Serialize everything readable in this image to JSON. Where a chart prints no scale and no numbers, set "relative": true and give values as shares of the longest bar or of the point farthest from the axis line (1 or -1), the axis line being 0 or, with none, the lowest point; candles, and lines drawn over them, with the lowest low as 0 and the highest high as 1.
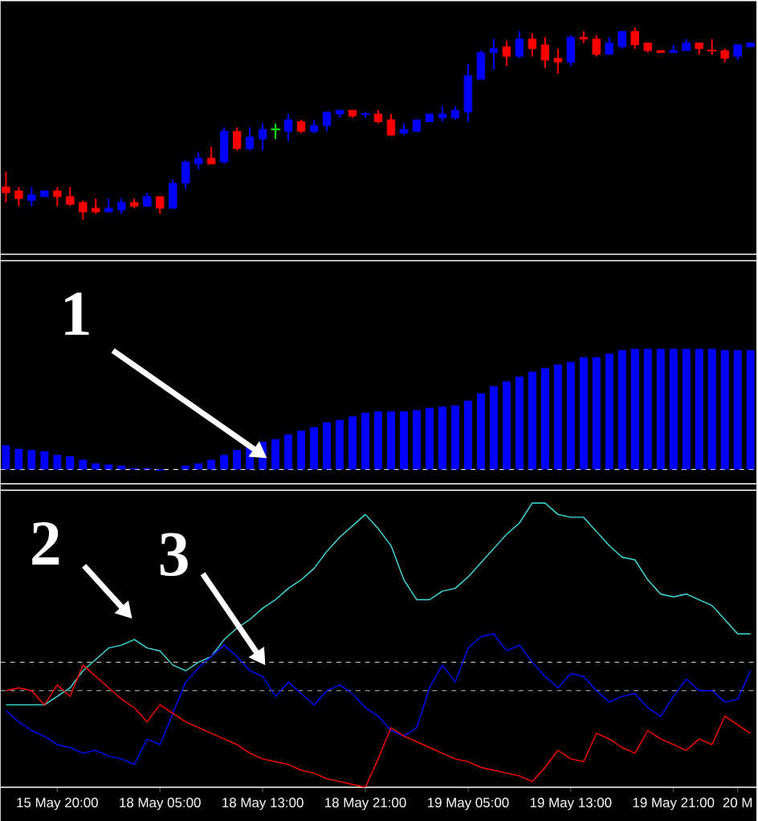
{
  "chart_data": [
    {
      "type": "candlestick",
      "relative": true,
      "categories": [
        null,
        null,
        null,
        null,
        null,
        null,
        null,
        null,
        null,
        null,
        null,
        null,
        null,
        null,
        null,
        null,
        null,
        null,
        null,
        null,
        null,
        null,
        null,
        null,
        null,
        null,
        null,
        null,
        null,
        null,
        null,
        null,
        null,
        null,
        null,
        null,
        null,
        null,
        null,
        null,
        null,
        null,
        null,
        null,
        null,
        null,
        null,
        null,
        null,
        null,
        null,
        null,
        null,
        null,
        null,
        null,
        null,
        null,
        null
      ],
      "ohlc": [
        [
          0.17,
          0.25,
          0.09,
          0.14
        ],
        [
          0.15,
          0.17,
          0.07,
          0.11
        ],
        [
          0.1,
          0.17,
          0.07,
          0.13
        ],
        [
          0.12,
          0.15,
          0.12,
          0.15
        ],
        [
          0.15,
          0.17,
          0.07,
          0.12
        ],
        [
          0.12,
          0.17,
          0.07,
          0.08
        ],
        [
          0.09,
          0.1,
          0,
          0.04
        ],
        [
          0.06,
          0.11,
          0.03,
          0.04
        ],
        [
          0.04,
          0.11,
          0.04,
          0.06
        ],
        [
          0.05,
          0.11,
          0.03,
          0.09
        ],
        [
          0.09,
          0.11,
          0.06,
          0.07
        ],
        [
          0.07,
          0.14,
          0.07,
          0.12
        ],
        [
          0.12,
          0.12,
          0.03,
          0.06
        ],
        [
          0.06,
          0.21,
          0.06,
          0.19
        ],
        [
          0.19,
          0.31,
          0.16,
          0.3
        ],
        [
          0.29,
          0.35,
          0.26,
          0.32
        ],
        [
          0.32,
          0.38,
          0.29,
          0.29
        ],
        [
          0.3,
          0.48,
          0.29,
          0.46
        ],
        [
          0.46,
          0.48,
          0.36,
          0.37
        ],
        [
          0.37,
          0.48,
          0.36,
          0.43
        ],
        [
          0.42,
          0.5,
          0.36,
          0.47
        ],
        [
          0.47,
          0.5,
          0.42,
          0.47
        ],
        [
          0.46,
          0.55,
          0.41,
          0.52
        ],
        [
          0.51,
          0.52,
          0.45,
          0.46
        ],
        [
          0.46,
          0.52,
          0.45,
          0.49
        ],
        [
          0.49,
          0.56,
          0.46,
          0.56
        ],
        [
          0.55,
          0.57,
          0.53,
          0.57
        ],
        [
          0.57,
          0.57,
          0.53,
          0.54
        ],
        [
          0.55,
          0.56,
          0.53,
          0.55
        ],
        [
          0.55,
          0.57,
          0.5,
          0.51
        ],
        [
          0.52,
          0.55,
          0.44,
          0.44
        ],
        [
          0.45,
          0.5,
          0.44,
          0.47
        ],
        [
          0.46,
          0.52,
          0.46,
          0.52
        ],
        [
          0.51,
          0.55,
          0.51,
          0.55
        ],
        [
          0.53,
          0.59,
          0.51,
          0.55
        ],
        [
          0.53,
          0.59,
          0.52,
          0.57
        ],
        [
          0.56,
          0.81,
          0.51,
          0.75
        ],
        [
          0.73,
          0.88,
          0.73,
          0.87
        ],
        [
          0.87,
          0.94,
          0.78,
          0.89
        ],
        [
          0.9,
          0.93,
          0.8,
          0.85
        ],
        [
          0.85,
          0.98,
          0.84,
          0.94
        ],
        [
          0.94,
          0.97,
          0.85,
          0.89
        ],
        [
          0.91,
          0.95,
          0.79,
          0.83
        ],
        [
          0.84,
          0.89,
          0.76,
          0.82
        ],
        [
          0.82,
          0.96,
          0.8,
          0.95
        ],
        [
          0.95,
          0.98,
          0.92,
          0.94
        ],
        [
          0.94,
          0.96,
          0.85,
          0.86
        ],
        [
          0.86,
          0.95,
          0.86,
          0.92
        ],
        [
          0.9,
          0.98,
          0.89,
          0.98
        ],
        [
          0.98,
          1,
          0.89,
          0.91
        ],
        [
          0.92,
          0.92,
          0.87,
          0.88
        ],
        [
          0.88,
          0.88,
          0.87,
          0.87
        ],
        [
          0.87,
          0.91,
          0.87,
          0.88
        ],
        [
          0.88,
          0.94,
          0.88,
          0.92
        ],
        [
          0.92,
          0.92,
          0.86,
          0.89
        ],
        [
          0.88,
          0.94,
          0.86,
          0.88
        ],
        [
          0.88,
          0.89,
          0.82,
          0.84
        ],
        [
          0.85,
          0.91,
          0.83,
          0.91
        ],
        [
          0.9,
          0.92,
          0.9,
          0.92
        ]
      ],
      "colors": [
        "#ff0000",
        "#ff0000",
        "#0000ff",
        "#0000ff",
        "#ff0000",
        "#ff0000",
        "#ff0000",
        "#ff0000",
        "#0000ff",
        "#0000ff",
        "#ff0000",
        "#0000ff",
        "#ff0000",
        "#0000ff",
        "#0000ff",
        "#0000ff",
        "#ff0000",
        "#0000ff",
        "#ff0000",
        "#0000ff",
        "#0000ff",
        "#00ff00",
        "#0000ff",
        "#ff0000",
        "#0000ff",
        "#0000ff",
        "#0000ff",
        "#ff0000",
        "#0000ff",
        "#ff0000",
        "#ff0000",
        "#0000ff",
        "#0000ff",
        "#0000ff",
        "#0000ff",
        "#0000ff",
        "#0000ff",
        "#0000ff",
        "#0000ff",
        "#ff0000",
        "#0000ff",
        "#ff0000",
        "#ff0000",
        "#ff0000",
        "#0000ff",
        "#ff0000",
        "#ff0000",
        "#0000ff",
        "#0000ff",
        "#ff0000",
        "#ff0000",
        "#ff0000",
        "#0000ff",
        "#0000ff",
        "#ff0000",
        "#ff0000",
        "#ff0000",
        "#0000ff",
        "#0000ff"
      ]
    },
    {
      "type": "bar",
      "relative": true,
      "color": "#0000ff",
      "annotations": [
        "1"
      ],
      "categories": [
        null,
        null,
        null,
        null,
        null,
        null,
        null,
        null,
        null,
        null,
        null,
        null,
        null,
        null,
        null,
        null,
        null,
        null,
        null,
        null,
        null,
        null,
        null,
        null,
        null,
        null,
        null,
        null,
        null,
        null,
        null,
        null,
        null,
        null,
        null,
        null,
        null,
        null,
        null,
        null,
        null,
        null,
        null,
        null,
        null,
        null,
        null,
        null,
        null,
        null,
        null,
        null,
        null,
        null,
        null,
        null,
        null,
        null,
        null
      ],
      "values": [
        0.2,
        0.17,
        0.16,
        0.15,
        0.12,
        0.11,
        0.08,
        0.05,
        0.04,
        0.03,
        0.01,
        0.01,
        -0.01,
        0,
        0.03,
        0.05,
        0.08,
        0.12,
        0.16,
        0.19,
        0.23,
        0.25,
        0.29,
        0.32,
        0.35,
        0.39,
        0.41,
        0.44,
        0.47,
        0.48,
        0.48,
        0.48,
        0.49,
        0.51,
        0.52,
        0.53,
        0.57,
        0.63,
        0.69,
        0.73,
        0.77,
        0.81,
        0.84,
        0.87,
        0.89,
        0.93,
        0.93,
        0.96,
        0.99,
        1,
        1,
        1,
        1,
        1,
        1,
        1,
        0.99,
        0.99,
        0.99
      ]
    },
    {
      "type": "line",
      "relative": true,
      "annotations": [
        "2",
        "3"
      ],
      "categories": [
        null,
        null,
        null,
        null,
        "15 May 20:00",
        null,
        null,
        null,
        null,
        null,
        null,
        null,
        "18 May 05:00",
        null,
        null,
        null,
        null,
        null,
        null,
        null,
        "18 May 13:00",
        null,
        null,
        null,
        null,
        null,
        null,
        null,
        "18 May 21:00",
        null,
        null,
        null,
        null,
        null,
        null,
        null,
        "19 May 05:00",
        null,
        null,
        null,
        null,
        null,
        null,
        null,
        "19 May 13:00",
        null,
        null,
        null,
        null,
        null,
        null,
        null,
        "19 May 21:00",
        null,
        null,
        null,
        null,
        "20 M",
        null
      ],
      "ref_lines": [
        {
          "axis": "y",
          "value": 0.44,
          "color": "#c0c0c0",
          "line_style": "dashed"
        },
        {
          "axis": "y",
          "value": 0.34,
          "color": "#c0c0c0",
          "line_style": "dashed"
        }
      ],
      "series": [
        {
          "color": "#40e0e0",
          "values": [
            0.29,
            0.29,
            0.29,
            0.29,
            0.32,
            0.35,
            0.41,
            0.45,
            0.49,
            0.5,
            0.52,
            0.49,
            0.48,
            0.43,
            0.41,
            0.44,
            0.46,
            0.52,
            0.56,
            0.59,
            0.63,
            0.66,
            0.7,
            0.73,
            0.77,
            0.83,
            0.88,
            0.92,
            0.96,
            0.91,
            0.85,
            0.73,
            0.66,
            0.66,
            0.69,
            0.7,
            0.74,
            0.79,
            0.84,
            0.89,
            0.93,
            1,
            1,
            0.96,
            0.95,
            0.95,
            0.9,
            0.85,
            0.81,
            0.8,
            0.73,
            0.68,
            0.67,
            0.68,
            0.66,
            0.64,
            0.59,
            0.54,
            0.54
          ]
        },
        {
          "color": "#0000ff",
          "values": [
            0.27,
            0.23,
            0.2,
            0.18,
            0.15,
            0.14,
            0.12,
            0.13,
            0.11,
            0.1,
            0.08,
            0.17,
            0.15,
            0.26,
            0.37,
            0.42,
            0.46,
            0.5,
            0.46,
            0.41,
            0.39,
            0.32,
            0.37,
            0.33,
            0.29,
            0.34,
            0.36,
            0.33,
            0.28,
            0.25,
            0.2,
            0.18,
            0.21,
            0.35,
            0.43,
            0.37,
            0.49,
            0.53,
            0.54,
            0.48,
            0.5,
            0.44,
            0.39,
            0.35,
            0.4,
            0.39,
            0.34,
            0.3,
            0.32,
            0.33,
            0.28,
            0.25,
            0.32,
            0.38,
            0.34,
            0.34,
            0.3,
            0.31,
            0.41
          ]
        },
        {
          "color": "#ff0000",
          "values": [
            0.34,
            0.35,
            0.34,
            0.29,
            0.36,
            0.32,
            0.43,
            0.39,
            0.35,
            0.31,
            0.28,
            0.23,
            0.29,
            0.26,
            0.23,
            0.21,
            0.19,
            0.17,
            0.15,
            0.12,
            0.1,
            0.09,
            0.08,
            0.06,
            0.05,
            0.03,
            0.02,
            0.01,
            0,
            0.1,
            0.21,
            0.18,
            0.16,
            0.14,
            0.12,
            0.1,
            0.09,
            0.07,
            0.06,
            0.05,
            0.04,
            0.02,
            0.07,
            0.13,
            0.1,
            0.09,
            0.19,
            0.17,
            0.14,
            0.12,
            0.2,
            0.17,
            0.15,
            0.13,
            0.17,
            0.15,
            0.25,
            0.22,
            0.19
          ]
        }
      ]
    }
  ]
}
